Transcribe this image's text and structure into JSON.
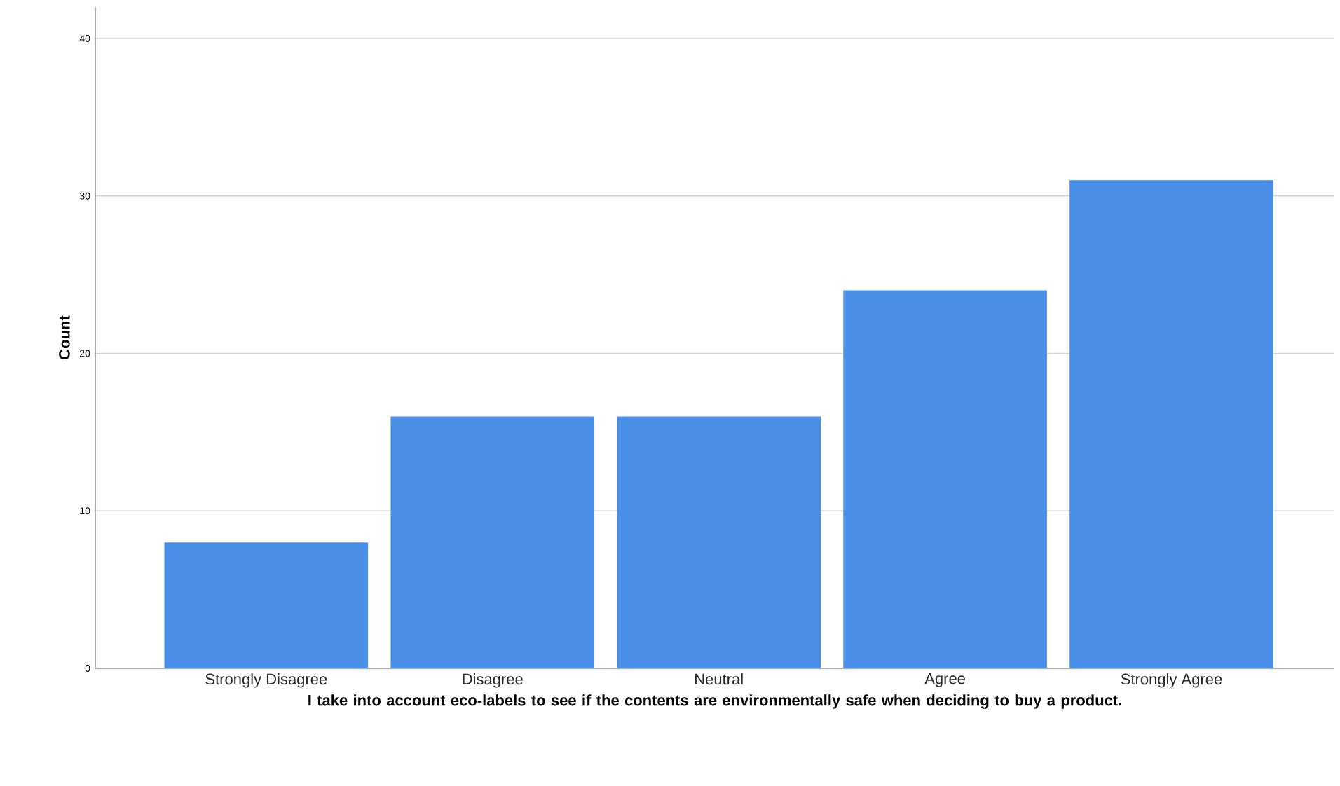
{
  "chart_data": {
    "type": "bar",
    "categories": [
      "Strongly Disagree",
      "Disagree",
      "Neutral",
      "Agree",
      "Strongly Agree"
    ],
    "values": [
      8,
      16,
      16,
      24,
      31
    ],
    "color": "#4a8fe7",
    "xlabel": "I take into account eco-labels to see if the contents are environmentally safe when deciding to buy a product.",
    "ylabel": "Count",
    "ylim": [
      0,
      42
    ],
    "yticks": [
      0,
      10,
      20,
      30,
      40
    ],
    "grid": "y"
  }
}
